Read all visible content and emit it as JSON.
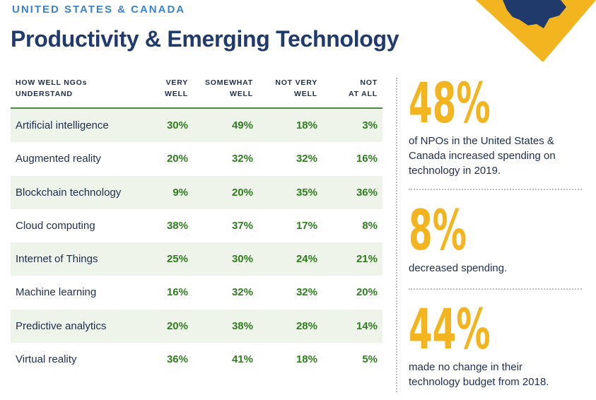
{
  "header": {
    "eyebrow": "UNITED STATES & CANADA",
    "title": "Productivity & Emerging Technology"
  },
  "colors": {
    "navy": "#1f3a6b",
    "blue_accent": "#3b83c9",
    "green_value": "#2f7d1f",
    "row_shade": "#eef4e9",
    "gold": "#f2b41f"
  },
  "table": {
    "columns": [
      "HOW WELL NGOs\nUNDERSTAND",
      "VERY\nWELL",
      "SOMEWHAT\nWELL",
      "NOT VERY\nWELL",
      "NOT\nAT ALL"
    ],
    "rows": [
      {
        "label": "Artificial intelligence",
        "values": [
          "30%",
          "49%",
          "18%",
          "3%"
        ]
      },
      {
        "label": "Augmented reality",
        "values": [
          "20%",
          "32%",
          "32%",
          "16%"
        ]
      },
      {
        "label": "Blockchain technology",
        "values": [
          "9%",
          "20%",
          "35%",
          "36%"
        ]
      },
      {
        "label": "Cloud computing",
        "values": [
          "38%",
          "37%",
          "17%",
          "8%"
        ]
      },
      {
        "label": "Internet of Things",
        "values": [
          "25%",
          "30%",
          "24%",
          "21%"
        ]
      },
      {
        "label": "Machine learning",
        "values": [
          "16%",
          "32%",
          "32%",
          "20%"
        ]
      },
      {
        "label": "Predictive analytics",
        "values": [
          "20%",
          "38%",
          "28%",
          "14%"
        ]
      },
      {
        "label": "Virtual reality",
        "values": [
          "36%",
          "41%",
          "18%",
          "5%"
        ]
      }
    ]
  },
  "stats": [
    {
      "value": "48%",
      "text": "of NPOs in the United States & Canada increased spending on technology in 2019."
    },
    {
      "value": "8%",
      "text": "decreased spending."
    },
    {
      "value": "44%",
      "text": "made no change in their technology budget from 2018."
    }
  ]
}
